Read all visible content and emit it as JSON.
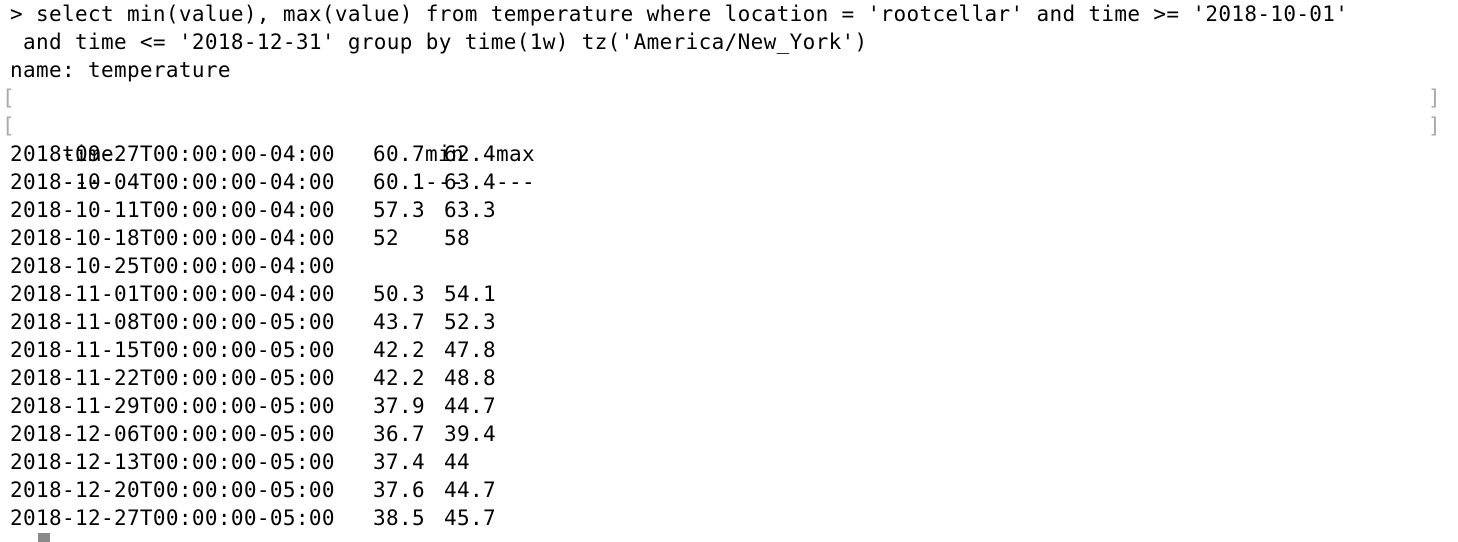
{
  "terminal": {
    "command_line_1": "> select min(value), max(value) from temperature where location = 'rootcellar' and time >= '2018-10-01'",
    "command_line_2": " and time <= '2018-12-31' group by time(1w) tz('America/New_York')",
    "result_name": "name: temperature",
    "columns": {
      "time": "time",
      "min": "min",
      "max": "max"
    },
    "separators": {
      "time": "----",
      "min": "---",
      "max": "---"
    },
    "rows": [
      {
        "time": "2018-09-27T00:00:00-04:00",
        "min": "60.7",
        "max": "62.4"
      },
      {
        "time": "2018-10-04T00:00:00-04:00",
        "min": "60.1",
        "max": "63.4"
      },
      {
        "time": "2018-10-11T00:00:00-04:00",
        "min": "57.3",
        "max": "63.3"
      },
      {
        "time": "2018-10-18T00:00:00-04:00",
        "min": "52",
        "max": "58"
      },
      {
        "time": "2018-10-25T00:00:00-04:00",
        "min": "",
        "max": ""
      },
      {
        "time": "2018-11-01T00:00:00-04:00",
        "min": "50.3",
        "max": "54.1"
      },
      {
        "time": "2018-11-08T00:00:00-05:00",
        "min": "43.7",
        "max": "52.3"
      },
      {
        "time": "2018-11-15T00:00:00-05:00",
        "min": "42.2",
        "max": "47.8"
      },
      {
        "time": "2018-11-22T00:00:00-05:00",
        "min": "42.2",
        "max": "48.8"
      },
      {
        "time": "2018-11-29T00:00:00-05:00",
        "min": "37.9",
        "max": "44.7"
      },
      {
        "time": "2018-12-06T00:00:00-05:00",
        "min": "36.7",
        "max": "39.4"
      },
      {
        "time": "2018-12-13T00:00:00-05:00",
        "min": "37.4",
        "max": "44"
      },
      {
        "time": "2018-12-20T00:00:00-05:00",
        "min": "37.6",
        "max": "44.7"
      },
      {
        "time": "2018-12-27T00:00:00-05:00",
        "min": "38.5",
        "max": "45.7"
      }
    ],
    "colors": {
      "background": "#ffffff",
      "text": "#000000",
      "cursor": "#8a8a8a"
    }
  }
}
